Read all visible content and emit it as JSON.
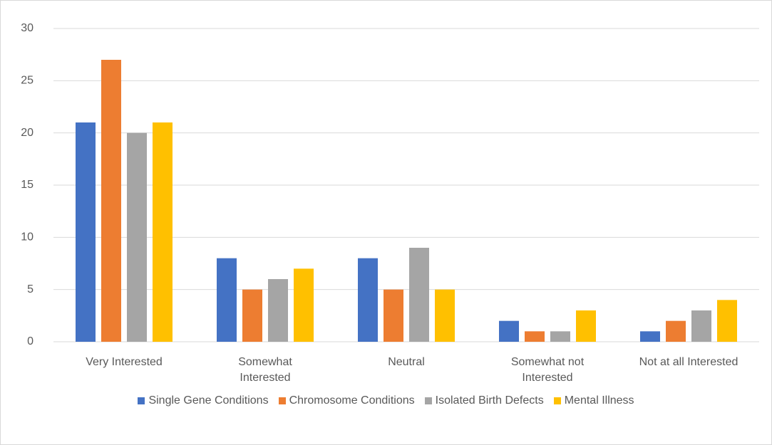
{
  "chart_data": {
    "type": "bar",
    "categories": [
      "Very Interested",
      "Somewhat Interested",
      "Neutral",
      "Somewhat not Interested",
      "Not at all Interested"
    ],
    "series": [
      {
        "name": "Single Gene Conditions",
        "color": "#4472c4",
        "values": [
          21,
          8,
          8,
          2,
          1
        ]
      },
      {
        "name": "Chromosome Conditions",
        "color": "#ed7d31",
        "values": [
          27,
          5,
          5,
          1,
          2
        ]
      },
      {
        "name": "Isolated Birth Defects",
        "color": "#a5a5a5",
        "values": [
          20,
          6,
          9,
          1,
          3
        ]
      },
      {
        "name": "Mental Illness",
        "color": "#ffc000",
        "values": [
          21,
          7,
          5,
          3,
          4
        ]
      }
    ],
    "ylim": [
      0,
      30
    ],
    "yticks": [
      0,
      5,
      10,
      15,
      20,
      25,
      30
    ],
    "grid": true,
    "legend": "bottom"
  }
}
